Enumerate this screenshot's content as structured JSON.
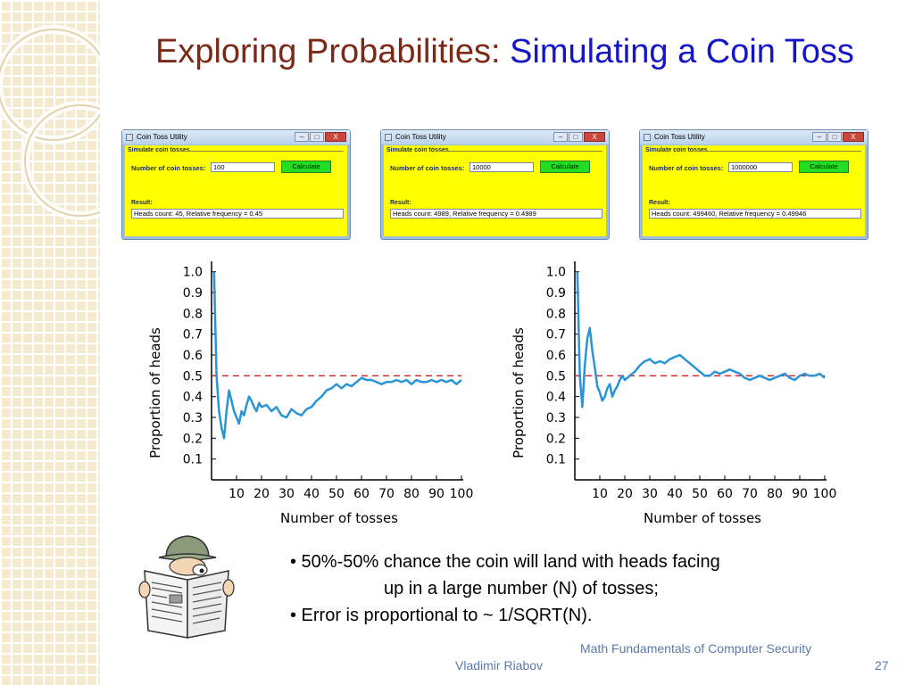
{
  "slide": {
    "title_main": "Exploring Probabilities: ",
    "title_sub": "Simulating a Coin Toss"
  },
  "windows": [
    {
      "title": "Coin Toss Utility",
      "group_label": "Simulate coin tosses",
      "num_label": "Number of coin tosses:",
      "num_value": "100",
      "calc_label": "Calculate",
      "result_label": "Result:",
      "result_value": "Heads count: 45, Relative frequency = 0.45",
      "controls": [
        "–",
        "□",
        "X"
      ]
    },
    {
      "title": "Coin Toss Utility",
      "group_label": "Simulate coin tosses",
      "num_label": "Number of coin tosses:",
      "num_value": "10000",
      "calc_label": "Calculate",
      "result_label": "Result:",
      "result_value": "Heads count: 4989, Relative frequency = 0.4989",
      "controls": [
        "–",
        "□",
        "X"
      ]
    },
    {
      "title": "Coin Toss Utility",
      "group_label": "Simulate coin tosses",
      "num_label": "Number of coin tosses:",
      "num_value": "1000000",
      "calc_label": "Calculate",
      "result_label": "Result:",
      "result_value": "Heads count: 499460, Relative frequency = 0.49946",
      "controls": [
        "–",
        "□",
        "X"
      ]
    }
  ],
  "chart_data": [
    {
      "type": "line",
      "xlabel": "Number of tosses",
      "ylabel": "Proportion of heads",
      "xlim": [
        0,
        100
      ],
      "ylim": [
        0,
        1.05
      ],
      "x_ticks": [
        "10",
        "20",
        "30",
        "40",
        "50",
        "60",
        "70",
        "80",
        "90",
        "100"
      ],
      "y_ticks": [
        "0.1",
        "0.2",
        "0.3",
        "0.4",
        "0.5",
        "0.6",
        "0.7",
        "0.8",
        "0.9",
        "1.0"
      ],
      "reference_line": 0.5,
      "line_color": "#2a95d6",
      "ref_color": "#d42020",
      "series": [
        {
          "x": [
            1,
            2,
            3,
            4,
            5,
            6,
            7,
            8,
            9,
            10,
            11,
            12,
            13,
            14,
            15,
            16,
            17,
            18,
            19,
            20,
            22,
            24,
            26,
            28,
            30,
            32,
            34,
            36,
            38,
            40,
            42,
            44,
            46,
            48,
            50,
            52,
            54,
            56,
            58,
            60,
            62,
            64,
            66,
            68,
            70,
            72,
            74,
            76,
            78,
            80,
            82,
            84,
            86,
            88,
            90,
            92,
            94,
            96,
            98,
            100
          ],
          "y": [
            1.0,
            0.5,
            0.33,
            0.25,
            0.2,
            0.33,
            0.43,
            0.38,
            0.33,
            0.3,
            0.27,
            0.33,
            0.31,
            0.36,
            0.4,
            0.38,
            0.35,
            0.33,
            0.37,
            0.35,
            0.36,
            0.33,
            0.35,
            0.31,
            0.3,
            0.34,
            0.32,
            0.31,
            0.34,
            0.35,
            0.38,
            0.4,
            0.43,
            0.44,
            0.46,
            0.44,
            0.46,
            0.45,
            0.47,
            0.49,
            0.48,
            0.48,
            0.47,
            0.46,
            0.47,
            0.47,
            0.48,
            0.47,
            0.48,
            0.46,
            0.48,
            0.47,
            0.47,
            0.48,
            0.47,
            0.48,
            0.47,
            0.48,
            0.46,
            0.48
          ]
        }
      ]
    },
    {
      "type": "line",
      "xlabel": "Number of tosses",
      "ylabel": "Proportion of heads",
      "xlim": [
        0,
        100
      ],
      "ylim": [
        0,
        1.05
      ],
      "x_ticks": [
        "10",
        "20",
        "30",
        "40",
        "50",
        "60",
        "70",
        "80",
        "90",
        "100"
      ],
      "y_ticks": [
        "0.1",
        "0.2",
        "0.3",
        "0.4",
        "0.5",
        "0.6",
        "0.7",
        "0.8",
        "0.9",
        "1.0"
      ],
      "reference_line": 0.5,
      "line_color": "#2a95d6",
      "ref_color": "#d42020",
      "series": [
        {
          "x": [
            1,
            2,
            3,
            4,
            5,
            6,
            7,
            8,
            9,
            10,
            11,
            12,
            13,
            14,
            15,
            16,
            17,
            18,
            19,
            20,
            22,
            24,
            26,
            28,
            30,
            32,
            34,
            36,
            38,
            40,
            42,
            44,
            46,
            48,
            50,
            52,
            54,
            56,
            58,
            60,
            62,
            64,
            66,
            68,
            70,
            72,
            74,
            76,
            78,
            80,
            82,
            84,
            86,
            88,
            90,
            92,
            94,
            96,
            98,
            100
          ],
          "y": [
            1.0,
            0.5,
            0.35,
            0.55,
            0.68,
            0.73,
            0.62,
            0.54,
            0.45,
            0.42,
            0.38,
            0.4,
            0.44,
            0.46,
            0.4,
            0.43,
            0.45,
            0.48,
            0.5,
            0.48,
            0.5,
            0.52,
            0.55,
            0.57,
            0.58,
            0.56,
            0.57,
            0.56,
            0.58,
            0.59,
            0.6,
            0.58,
            0.56,
            0.54,
            0.52,
            0.5,
            0.5,
            0.52,
            0.51,
            0.52,
            0.53,
            0.52,
            0.51,
            0.49,
            0.48,
            0.49,
            0.5,
            0.49,
            0.48,
            0.49,
            0.5,
            0.51,
            0.49,
            0.48,
            0.5,
            0.51,
            0.5,
            0.5,
            0.51,
            0.49
          ]
        }
      ]
    }
  ],
  "bullets": [
    "• 50%-50% chance the coin will land with heads facing",
    "up in a large number (N) of tosses;",
    "• Error is proportional to ~ 1/SQRT(N)."
  ],
  "footer": {
    "author": "Vladimir Riabov",
    "course": "Math Fundamentals of Computer Security",
    "page": "27"
  }
}
